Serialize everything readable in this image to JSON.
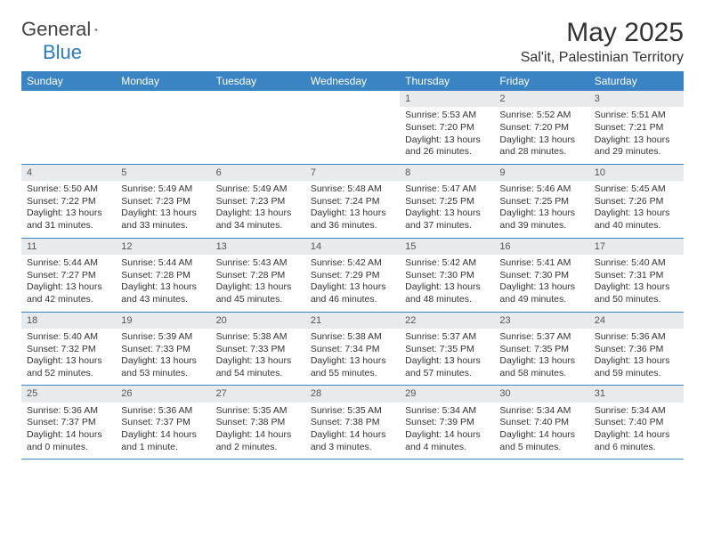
{
  "logo": {
    "general": "General",
    "blue": "Blue"
  },
  "header": {
    "title": "May 2025",
    "location": "Sal'it, Palestinian Territory"
  },
  "colors": {
    "header_bg": "#3a84c4",
    "header_text": "#ffffff",
    "daynum_bg": "#e9eaeb",
    "daynum_text": "#555555",
    "body_text": "#333333",
    "rule": "#3a84c4",
    "logo_blue": "#2b7bbf"
  },
  "days_of_week": [
    "Sunday",
    "Monday",
    "Tuesday",
    "Wednesday",
    "Thursday",
    "Friday",
    "Saturday"
  ],
  "weeks": [
    [
      {
        "n": "",
        "sunrise": "",
        "sunset": "",
        "daylight": ""
      },
      {
        "n": "",
        "sunrise": "",
        "sunset": "",
        "daylight": ""
      },
      {
        "n": "",
        "sunrise": "",
        "sunset": "",
        "daylight": ""
      },
      {
        "n": "",
        "sunrise": "",
        "sunset": "",
        "daylight": ""
      },
      {
        "n": "1",
        "sunrise": "Sunrise: 5:53 AM",
        "sunset": "Sunset: 7:20 PM",
        "daylight": "Daylight: 13 hours and 26 minutes."
      },
      {
        "n": "2",
        "sunrise": "Sunrise: 5:52 AM",
        "sunset": "Sunset: 7:20 PM",
        "daylight": "Daylight: 13 hours and 28 minutes."
      },
      {
        "n": "3",
        "sunrise": "Sunrise: 5:51 AM",
        "sunset": "Sunset: 7:21 PM",
        "daylight": "Daylight: 13 hours and 29 minutes."
      }
    ],
    [
      {
        "n": "4",
        "sunrise": "Sunrise: 5:50 AM",
        "sunset": "Sunset: 7:22 PM",
        "daylight": "Daylight: 13 hours and 31 minutes."
      },
      {
        "n": "5",
        "sunrise": "Sunrise: 5:49 AM",
        "sunset": "Sunset: 7:23 PM",
        "daylight": "Daylight: 13 hours and 33 minutes."
      },
      {
        "n": "6",
        "sunrise": "Sunrise: 5:49 AM",
        "sunset": "Sunset: 7:23 PM",
        "daylight": "Daylight: 13 hours and 34 minutes."
      },
      {
        "n": "7",
        "sunrise": "Sunrise: 5:48 AM",
        "sunset": "Sunset: 7:24 PM",
        "daylight": "Daylight: 13 hours and 36 minutes."
      },
      {
        "n": "8",
        "sunrise": "Sunrise: 5:47 AM",
        "sunset": "Sunset: 7:25 PM",
        "daylight": "Daylight: 13 hours and 37 minutes."
      },
      {
        "n": "9",
        "sunrise": "Sunrise: 5:46 AM",
        "sunset": "Sunset: 7:25 PM",
        "daylight": "Daylight: 13 hours and 39 minutes."
      },
      {
        "n": "10",
        "sunrise": "Sunrise: 5:45 AM",
        "sunset": "Sunset: 7:26 PM",
        "daylight": "Daylight: 13 hours and 40 minutes."
      }
    ],
    [
      {
        "n": "11",
        "sunrise": "Sunrise: 5:44 AM",
        "sunset": "Sunset: 7:27 PM",
        "daylight": "Daylight: 13 hours and 42 minutes."
      },
      {
        "n": "12",
        "sunrise": "Sunrise: 5:44 AM",
        "sunset": "Sunset: 7:28 PM",
        "daylight": "Daylight: 13 hours and 43 minutes."
      },
      {
        "n": "13",
        "sunrise": "Sunrise: 5:43 AM",
        "sunset": "Sunset: 7:28 PM",
        "daylight": "Daylight: 13 hours and 45 minutes."
      },
      {
        "n": "14",
        "sunrise": "Sunrise: 5:42 AM",
        "sunset": "Sunset: 7:29 PM",
        "daylight": "Daylight: 13 hours and 46 minutes."
      },
      {
        "n": "15",
        "sunrise": "Sunrise: 5:42 AM",
        "sunset": "Sunset: 7:30 PM",
        "daylight": "Daylight: 13 hours and 48 minutes."
      },
      {
        "n": "16",
        "sunrise": "Sunrise: 5:41 AM",
        "sunset": "Sunset: 7:30 PM",
        "daylight": "Daylight: 13 hours and 49 minutes."
      },
      {
        "n": "17",
        "sunrise": "Sunrise: 5:40 AM",
        "sunset": "Sunset: 7:31 PM",
        "daylight": "Daylight: 13 hours and 50 minutes."
      }
    ],
    [
      {
        "n": "18",
        "sunrise": "Sunrise: 5:40 AM",
        "sunset": "Sunset: 7:32 PM",
        "daylight": "Daylight: 13 hours and 52 minutes."
      },
      {
        "n": "19",
        "sunrise": "Sunrise: 5:39 AM",
        "sunset": "Sunset: 7:33 PM",
        "daylight": "Daylight: 13 hours and 53 minutes."
      },
      {
        "n": "20",
        "sunrise": "Sunrise: 5:38 AM",
        "sunset": "Sunset: 7:33 PM",
        "daylight": "Daylight: 13 hours and 54 minutes."
      },
      {
        "n": "21",
        "sunrise": "Sunrise: 5:38 AM",
        "sunset": "Sunset: 7:34 PM",
        "daylight": "Daylight: 13 hours and 55 minutes."
      },
      {
        "n": "22",
        "sunrise": "Sunrise: 5:37 AM",
        "sunset": "Sunset: 7:35 PM",
        "daylight": "Daylight: 13 hours and 57 minutes."
      },
      {
        "n": "23",
        "sunrise": "Sunrise: 5:37 AM",
        "sunset": "Sunset: 7:35 PM",
        "daylight": "Daylight: 13 hours and 58 minutes."
      },
      {
        "n": "24",
        "sunrise": "Sunrise: 5:36 AM",
        "sunset": "Sunset: 7:36 PM",
        "daylight": "Daylight: 13 hours and 59 minutes."
      }
    ],
    [
      {
        "n": "25",
        "sunrise": "Sunrise: 5:36 AM",
        "sunset": "Sunset: 7:37 PM",
        "daylight": "Daylight: 14 hours and 0 minutes."
      },
      {
        "n": "26",
        "sunrise": "Sunrise: 5:36 AM",
        "sunset": "Sunset: 7:37 PM",
        "daylight": "Daylight: 14 hours and 1 minute."
      },
      {
        "n": "27",
        "sunrise": "Sunrise: 5:35 AM",
        "sunset": "Sunset: 7:38 PM",
        "daylight": "Daylight: 14 hours and 2 minutes."
      },
      {
        "n": "28",
        "sunrise": "Sunrise: 5:35 AM",
        "sunset": "Sunset: 7:38 PM",
        "daylight": "Daylight: 14 hours and 3 minutes."
      },
      {
        "n": "29",
        "sunrise": "Sunrise: 5:34 AM",
        "sunset": "Sunset: 7:39 PM",
        "daylight": "Daylight: 14 hours and 4 minutes."
      },
      {
        "n": "30",
        "sunrise": "Sunrise: 5:34 AM",
        "sunset": "Sunset: 7:40 PM",
        "daylight": "Daylight: 14 hours and 5 minutes."
      },
      {
        "n": "31",
        "sunrise": "Sunrise: 5:34 AM",
        "sunset": "Sunset: 7:40 PM",
        "daylight": "Daylight: 14 hours and 6 minutes."
      }
    ]
  ]
}
